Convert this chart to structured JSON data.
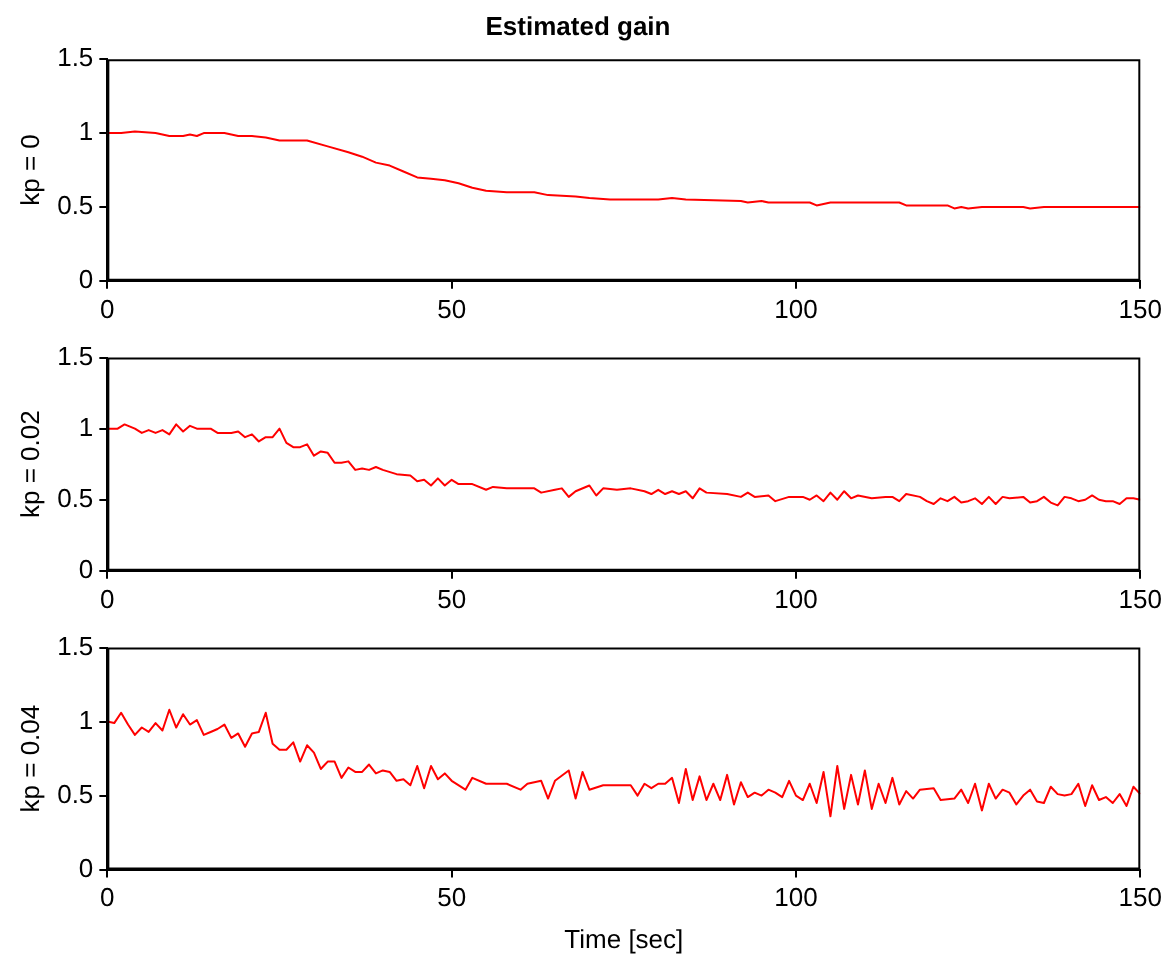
{
  "chart_data": [
    {
      "type": "line",
      "title": "Estimated gain",
      "ylabel": "kp = 0",
      "xlim": [
        0,
        150
      ],
      "xticks": [
        0,
        50,
        100,
        150
      ],
      "ylim": [
        0,
        1.5
      ],
      "yticks": [
        0,
        0.5,
        1,
        1.5
      ],
      "grid": false,
      "x": [
        0,
        2,
        4,
        7,
        9,
        11,
        12,
        13,
        14,
        17,
        19,
        21,
        23,
        25,
        28,
        29,
        32,
        35,
        37,
        39,
        41,
        43,
        45,
        47,
        49,
        51,
        53,
        55,
        58,
        62,
        64,
        68,
        70,
        73,
        80,
        82,
        84,
        92,
        93,
        95,
        96,
        102,
        103,
        105,
        115,
        116,
        122,
        123,
        124,
        125,
        127,
        133,
        134,
        136,
        150
      ],
      "series": [
        {
          "color": "#ff0000",
          "values": [
            1.0,
            1.0,
            1.01,
            1.0,
            0.98,
            0.98,
            0.99,
            0.98,
            1.0,
            1.0,
            0.98,
            0.98,
            0.97,
            0.95,
            0.95,
            0.95,
            0.91,
            0.87,
            0.84,
            0.8,
            0.78,
            0.74,
            0.7,
            0.69,
            0.68,
            0.66,
            0.63,
            0.61,
            0.6,
            0.6,
            0.58,
            0.57,
            0.56,
            0.55,
            0.55,
            0.56,
            0.55,
            0.54,
            0.53,
            0.54,
            0.53,
            0.53,
            0.51,
            0.53,
            0.53,
            0.51,
            0.51,
            0.49,
            0.5,
            0.49,
            0.5,
            0.5,
            0.49,
            0.5,
            0.5
          ]
        }
      ]
    },
    {
      "type": "line",
      "ylabel": "kp = 0.02",
      "xlim": [
        0,
        150
      ],
      "xticks": [
        0,
        50,
        100,
        150
      ],
      "ylim": [
        0,
        1.5
      ],
      "yticks": [
        0,
        0.5,
        1,
        1.5
      ],
      "grid": false,
      "x": [
        0,
        1.5,
        2.5,
        4,
        5,
        6,
        7,
        8,
        9,
        10,
        11,
        12,
        13,
        15,
        16,
        18,
        19,
        20,
        21,
        22,
        23,
        24,
        25,
        26,
        27,
        28,
        29,
        30,
        31,
        32,
        33,
        34,
        35,
        36,
        37,
        38,
        39,
        40,
        42,
        44,
        45,
        46,
        47,
        48,
        49,
        50,
        51,
        53,
        55,
        56,
        58,
        62,
        63,
        65,
        66,
        67,
        68,
        70,
        71,
        72,
        74,
        76,
        78,
        79,
        80,
        81,
        82,
        83,
        84,
        85,
        86,
        87,
        90,
        92,
        93,
        94,
        96,
        97,
        99,
        101,
        102,
        103,
        104,
        105,
        106,
        107,
        108,
        109,
        111,
        113,
        114,
        115,
        116,
        118,
        119,
        120,
        121,
        122,
        123,
        124,
        125,
        126,
        127,
        128,
        129,
        130,
        131,
        133,
        134,
        135,
        136,
        137,
        138,
        139,
        140,
        141,
        142,
        143,
        144,
        145,
        146,
        147,
        148,
        149,
        150
      ],
      "series": [
        {
          "color": "#ff0000",
          "values": [
            1.0,
            1.0,
            1.03,
            1.0,
            0.97,
            0.99,
            0.97,
            0.99,
            0.96,
            1.03,
            0.98,
            1.02,
            1.0,
            1.0,
            0.97,
            0.97,
            0.98,
            0.94,
            0.96,
            0.91,
            0.94,
            0.94,
            1.0,
            0.9,
            0.87,
            0.87,
            0.89,
            0.81,
            0.84,
            0.83,
            0.76,
            0.76,
            0.77,
            0.71,
            0.72,
            0.71,
            0.73,
            0.71,
            0.68,
            0.67,
            0.63,
            0.64,
            0.6,
            0.65,
            0.6,
            0.64,
            0.61,
            0.61,
            0.57,
            0.59,
            0.58,
            0.58,
            0.55,
            0.57,
            0.58,
            0.52,
            0.56,
            0.6,
            0.53,
            0.58,
            0.57,
            0.58,
            0.56,
            0.54,
            0.57,
            0.54,
            0.56,
            0.54,
            0.56,
            0.51,
            0.58,
            0.55,
            0.54,
            0.52,
            0.55,
            0.52,
            0.53,
            0.49,
            0.52,
            0.52,
            0.5,
            0.53,
            0.49,
            0.55,
            0.5,
            0.56,
            0.51,
            0.53,
            0.51,
            0.52,
            0.52,
            0.49,
            0.54,
            0.52,
            0.49,
            0.47,
            0.51,
            0.49,
            0.52,
            0.48,
            0.49,
            0.51,
            0.47,
            0.52,
            0.47,
            0.52,
            0.51,
            0.52,
            0.48,
            0.49,
            0.52,
            0.48,
            0.46,
            0.52,
            0.51,
            0.49,
            0.5,
            0.53,
            0.5,
            0.49,
            0.49,
            0.47,
            0.51,
            0.51,
            0.5
          ]
        }
      ]
    },
    {
      "type": "line",
      "xlabel": "Time [sec]",
      "ylabel": "kp = 0.04",
      "xlim": [
        0,
        150
      ],
      "xticks": [
        0,
        50,
        100,
        150
      ],
      "ylim": [
        0,
        1.5
      ],
      "yticks": [
        0,
        0.5,
        1,
        1.5
      ],
      "grid": false,
      "x": [
        0,
        1,
        2,
        3,
        4,
        5,
        6,
        7,
        8,
        9,
        10,
        11,
        12,
        13,
        14,
        15,
        16,
        17,
        18,
        19,
        20,
        21,
        22,
        23,
        24,
        25,
        26,
        27,
        28,
        29,
        30,
        31,
        32,
        33,
        34,
        35,
        36,
        37,
        38,
        39,
        40,
        41,
        42,
        43,
        44,
        45,
        46,
        47,
        48,
        49,
        50,
        52,
        53,
        55,
        58,
        60,
        61,
        63,
        64,
        65,
        67,
        68,
        69,
        70,
        72,
        76,
        77,
        78,
        79,
        80,
        81,
        82,
        83,
        84,
        85,
        86,
        87,
        88,
        89,
        90,
        91,
        92,
        93,
        94,
        95,
        96,
        97,
        98,
        99,
        100,
        101,
        102,
        103,
        104,
        105,
        106,
        107,
        108,
        109,
        110,
        111,
        112,
        113,
        114,
        115,
        116,
        117,
        118,
        120,
        121,
        123,
        124,
        125,
        126,
        127,
        128,
        129,
        130,
        131,
        132,
        133,
        134,
        135,
        136,
        137,
        138,
        139,
        140,
        141,
        142,
        143,
        144,
        145,
        146,
        147,
        148,
        149,
        150
      ],
      "series": [
        {
          "color": "#ff0000",
          "values": [
            1.0,
            0.99,
            1.06,
            0.98,
            0.91,
            0.96,
            0.93,
            0.99,
            0.94,
            1.08,
            0.96,
            1.05,
            0.98,
            1.01,
            0.91,
            0.93,
            0.95,
            0.98,
            0.89,
            0.92,
            0.83,
            0.92,
            0.93,
            1.06,
            0.85,
            0.81,
            0.81,
            0.86,
            0.73,
            0.84,
            0.79,
            0.68,
            0.73,
            0.73,
            0.62,
            0.69,
            0.66,
            0.66,
            0.71,
            0.65,
            0.67,
            0.66,
            0.6,
            0.61,
            0.57,
            0.7,
            0.55,
            0.7,
            0.61,
            0.65,
            0.6,
            0.54,
            0.62,
            0.58,
            0.58,
            0.54,
            0.58,
            0.6,
            0.48,
            0.6,
            0.67,
            0.48,
            0.66,
            0.54,
            0.57,
            0.57,
            0.5,
            0.58,
            0.55,
            0.58,
            0.58,
            0.62,
            0.45,
            0.68,
            0.47,
            0.63,
            0.47,
            0.58,
            0.47,
            0.64,
            0.44,
            0.59,
            0.49,
            0.52,
            0.5,
            0.54,
            0.52,
            0.49,
            0.6,
            0.5,
            0.47,
            0.58,
            0.45,
            0.66,
            0.36,
            0.7,
            0.41,
            0.64,
            0.44,
            0.67,
            0.41,
            0.58,
            0.45,
            0.62,
            0.44,
            0.53,
            0.48,
            0.54,
            0.55,
            0.47,
            0.48,
            0.54,
            0.45,
            0.58,
            0.4,
            0.58,
            0.48,
            0.54,
            0.52,
            0.44,
            0.5,
            0.54,
            0.46,
            0.45,
            0.56,
            0.51,
            0.5,
            0.51,
            0.58,
            0.43,
            0.57,
            0.47,
            0.49,
            0.45,
            0.51,
            0.43,
            0.56,
            0.51
          ]
        }
      ]
    }
  ]
}
